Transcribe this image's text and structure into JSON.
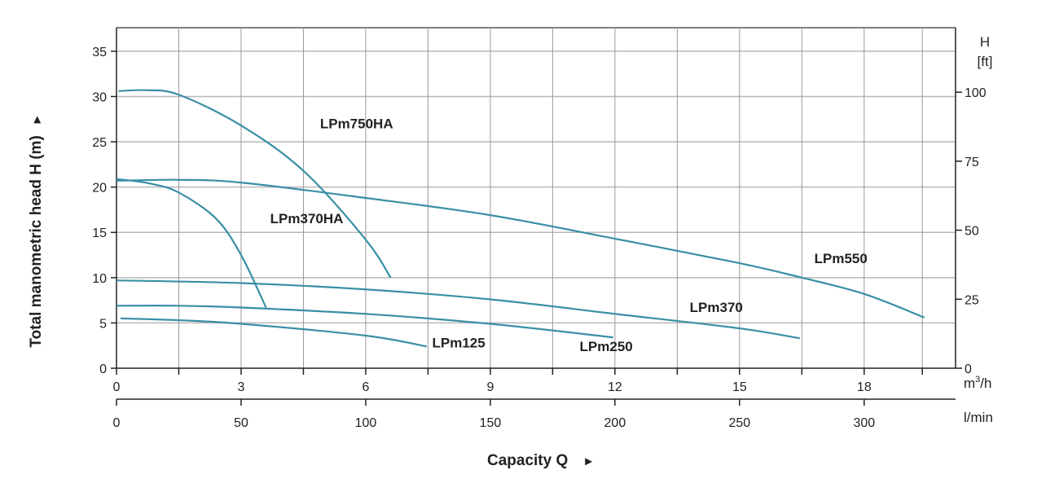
{
  "chart_data": {
    "type": "line",
    "title": "",
    "xlabel": "Capacity Q",
    "ylabel": "Total manometric head H (m)",
    "x_unit": "m3/h",
    "x_unit_base": "m",
    "x_unit_sup": "3",
    "x_unit_tail": "/h",
    "x2_unit": "l/min",
    "y2_title": "H",
    "y2_unit": "[ft]",
    "arrow": "►",
    "y_arrow": "►",
    "xlim": [
      0,
      20.2
    ],
    "ylim": [
      0,
      37.6
    ],
    "grid": true,
    "x_ticks": [
      0,
      3,
      6,
      9,
      12,
      15,
      18
    ],
    "x_tick_labels": [
      "0",
      "3",
      "6",
      "9",
      "12",
      "15",
      "18"
    ],
    "x_minor_ticks": [
      1.5,
      4.5,
      7.5,
      10.5,
      13.5,
      16.5,
      19.4
    ],
    "y_ticks": [
      0,
      5,
      10,
      15,
      20,
      25,
      30,
      35
    ],
    "y_tick_labels": [
      "0",
      "5",
      "10",
      "15",
      "20",
      "25",
      "30",
      "35"
    ],
    "x2_ticks_lmin": [
      0,
      50,
      100,
      150,
      200,
      250,
      300
    ],
    "x2_tick_labels": [
      "0",
      "50",
      "100",
      "150",
      "200",
      "250",
      "300"
    ],
    "y2_ticks_ft": [
      0,
      25,
      50,
      75,
      100
    ],
    "y2_tick_labels": [
      "0",
      "25",
      "50",
      "75",
      "100"
    ],
    "series_color": "#3a8fa6",
    "series": [
      {
        "name": "LPm750HA",
        "label_at": [
          4.9,
          26.5
        ],
        "points": [
          [
            0.05,
            30.6
          ],
          [
            0.7,
            30.7
          ],
          [
            1.5,
            30.2
          ],
          [
            3,
            26.8
          ],
          [
            4.5,
            21.8
          ],
          [
            6,
            14.2
          ],
          [
            6.6,
            10.0
          ]
        ]
      },
      {
        "name": "LPm370HA",
        "label_at": [
          3.7,
          16.0
        ],
        "points": [
          [
            0,
            20.9
          ],
          [
            0.8,
            20.4
          ],
          [
            1.5,
            19.4
          ],
          [
            2.4,
            16.5
          ],
          [
            3,
            12.5
          ],
          [
            3.6,
            6.7
          ]
        ]
      },
      {
        "name": "LPm550",
        "label_at": [
          16.8,
          11.6
        ],
        "points": [
          [
            0,
            20.7
          ],
          [
            1.5,
            20.8
          ],
          [
            3,
            20.5
          ],
          [
            6,
            18.8
          ],
          [
            9,
            16.9
          ],
          [
            12,
            14.3
          ],
          [
            15,
            11.6
          ],
          [
            16.5,
            10.0
          ],
          [
            18,
            8.2
          ],
          [
            19.45,
            5.6
          ]
        ]
      },
      {
        "name": "LPm370",
        "label_at": [
          13.8,
          6.2
        ],
        "points": [
          [
            0,
            9.7
          ],
          [
            3,
            9.4
          ],
          [
            6,
            8.7
          ],
          [
            9,
            7.6
          ],
          [
            12,
            6.0
          ],
          [
            15,
            4.4
          ],
          [
            16.45,
            3.3
          ]
        ]
      },
      {
        "name": "LPm250",
        "label_at": [
          11.15,
          1.9
        ],
        "points": [
          [
            0,
            6.9
          ],
          [
            1.5,
            6.9
          ],
          [
            3,
            6.7
          ],
          [
            6,
            6.0
          ],
          [
            9,
            4.9
          ],
          [
            11.96,
            3.4
          ]
        ]
      },
      {
        "name": "LPm125",
        "label_at": [
          7.6,
          2.3
        ],
        "points": [
          [
            0.1,
            5.5
          ],
          [
            1.5,
            5.3
          ],
          [
            3,
            4.9
          ],
          [
            6,
            3.6
          ],
          [
            7.47,
            2.4
          ]
        ]
      }
    ]
  }
}
